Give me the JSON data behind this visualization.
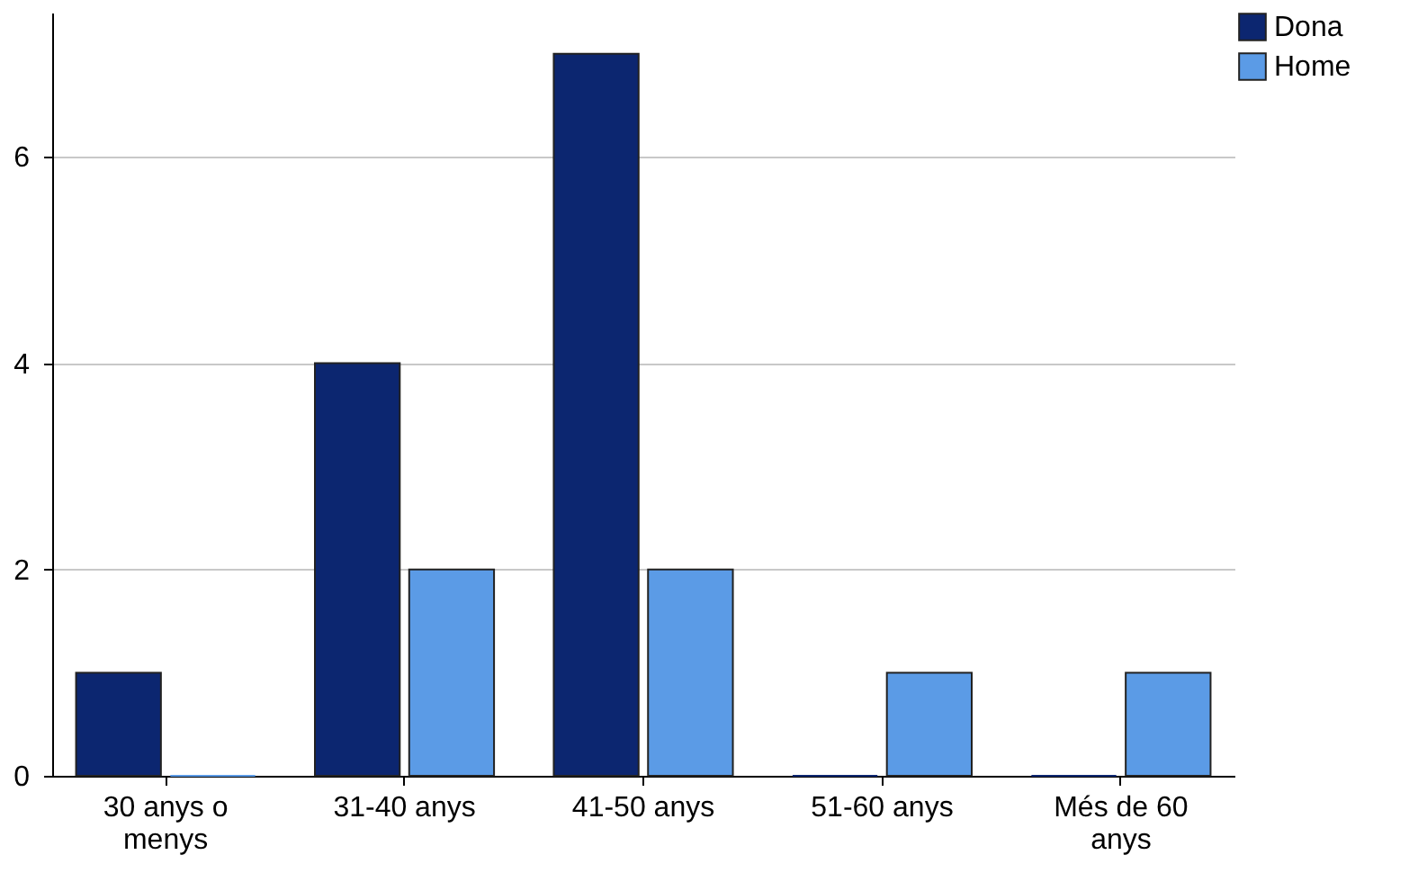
{
  "chart_data": {
    "type": "bar",
    "categories": [
      "30 anys o menys",
      "31-40 anys",
      "41-50 anys",
      "51-60 anys",
      "Més de 60 anys"
    ],
    "series": [
      {
        "name": "Dona",
        "color": "#0c2670",
        "values": [
          1,
          4,
          7,
          0,
          0
        ]
      },
      {
        "name": "Home",
        "color": "#5b9be6",
        "values": [
          0,
          2,
          2,
          1,
          1
        ]
      }
    ],
    "ylim": [
      0,
      7.4
    ],
    "yticks": [
      0,
      2,
      4,
      6
    ],
    "grid": "y",
    "legend": "top right"
  }
}
